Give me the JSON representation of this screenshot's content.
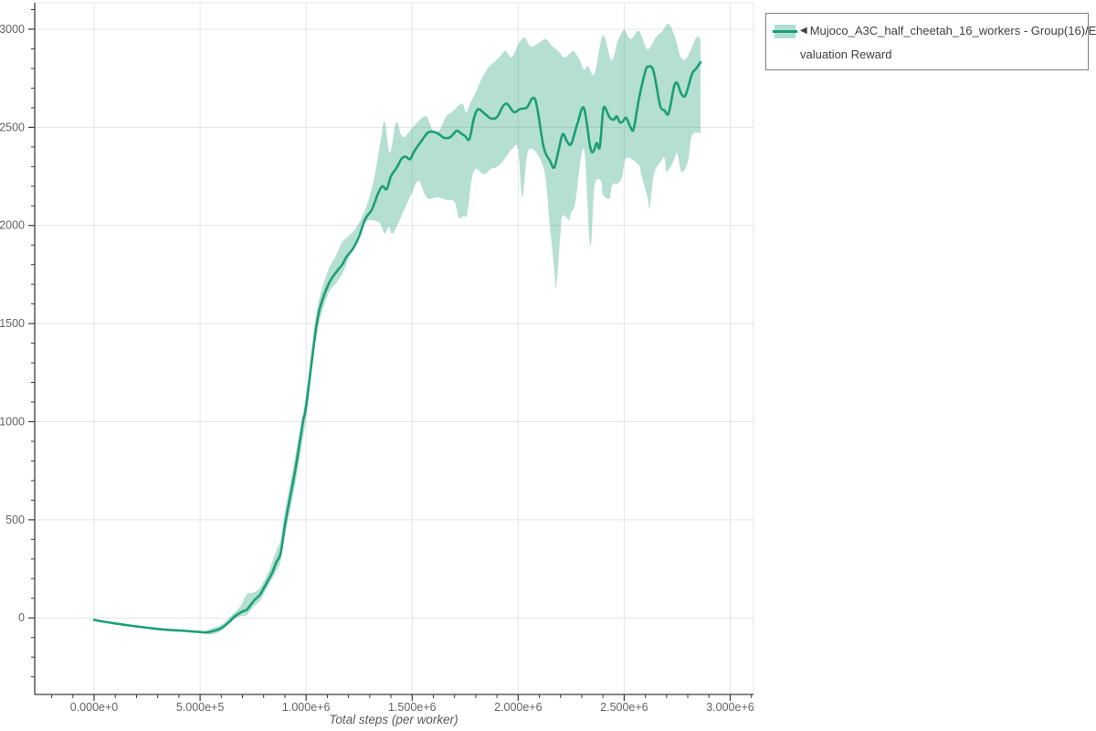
{
  "colors": {
    "series": "#1b9e77",
    "band_opacity": 0.33,
    "grid": "#e4e4e4",
    "axis": "#3c3c3c",
    "tick_label": "#636363",
    "axis_title": "#595959",
    "legend_border": "#7f7f7f",
    "legend_text": "#3f3f3f"
  },
  "legend": {
    "collapse_arrow": "◀",
    "label_line1": "Mujoco_A3C_half_cheetah_16_workers - Group(16)/E",
    "label_line2": "valuation Reward",
    "full_label": "Mujoco_A3C_half_cheetah_16_workers - Group(16)/Evaluation Reward"
  },
  "chart_data": {
    "type": "line",
    "title": "",
    "xlabel": "Total steps (per worker)",
    "ylabel": "",
    "grid": true,
    "legend_position": "top-right",
    "xlim": [
      -280000,
      3110000
    ],
    "ylim": [
      -390,
      3135
    ],
    "x_major_ticks": {
      "values": [
        0,
        500000,
        1000000,
        1500000,
        2000000,
        2500000,
        3000000
      ],
      "labels": [
        "0.000e+0",
        "5.000e+5",
        "1.000e+6",
        "1.500e+6",
        "2.000e+6",
        "2.500e+6",
        "3.000e+6"
      ]
    },
    "y_major_ticks": {
      "values": [
        0,
        500,
        1000,
        1500,
        2000,
        2500,
        3000
      ],
      "labels": [
        "0",
        "500",
        "1000",
        "1500",
        "2000",
        "2500",
        "3000"
      ]
    },
    "x_minor": {
      "start": -200000,
      "end": 3100000,
      "step": 100000
    },
    "y_minor": {
      "start": -300,
      "end": 3100,
      "step": 100
    },
    "series": [
      {
        "name": "Mujoco_A3C_half_cheetah_16_workers - Group(16)/Evaluation Reward",
        "style": "mean_line_with_band",
        "color": "#1b9e77",
        "mean": [
          [
            0,
            -10
          ],
          [
            50000,
            -20
          ],
          [
            100000,
            -28
          ],
          [
            150000,
            -36
          ],
          [
            200000,
            -43
          ],
          [
            250000,
            -50
          ],
          [
            300000,
            -56
          ],
          [
            350000,
            -61
          ],
          [
            400000,
            -64
          ],
          [
            450000,
            -68
          ],
          [
            500000,
            -72
          ],
          [
            530000,
            -74
          ],
          [
            560000,
            -68
          ],
          [
            600000,
            -52
          ],
          [
            640000,
            -18
          ],
          [
            660000,
            5
          ],
          [
            680000,
            20
          ],
          [
            700000,
            33
          ],
          [
            720000,
            42
          ],
          [
            740000,
            68
          ],
          [
            760000,
            95
          ],
          [
            780000,
            115
          ],
          [
            800000,
            150
          ],
          [
            820000,
            190
          ],
          [
            840000,
            230
          ],
          [
            860000,
            285
          ],
          [
            880000,
            330
          ],
          [
            900000,
            470
          ],
          [
            920000,
            590
          ],
          [
            950000,
            760
          ],
          [
            985000,
            1000
          ],
          [
            1000000,
            1080
          ],
          [
            1050000,
            1500
          ],
          [
            1080000,
            1630
          ],
          [
            1110000,
            1710
          ],
          [
            1140000,
            1760
          ],
          [
            1170000,
            1800
          ],
          [
            1190000,
            1840
          ],
          [
            1220000,
            1880
          ],
          [
            1250000,
            1945
          ],
          [
            1280000,
            2035
          ],
          [
            1310000,
            2080
          ],
          [
            1340000,
            2165
          ],
          [
            1360000,
            2200
          ],
          [
            1380000,
            2185
          ],
          [
            1400000,
            2250
          ],
          [
            1430000,
            2300
          ],
          [
            1450000,
            2340
          ],
          [
            1470000,
            2350
          ],
          [
            1490000,
            2338
          ],
          [
            1510000,
            2378
          ],
          [
            1540000,
            2425
          ],
          [
            1570000,
            2468
          ],
          [
            1590000,
            2478
          ],
          [
            1620000,
            2470
          ],
          [
            1650000,
            2447
          ],
          [
            1680000,
            2450
          ],
          [
            1710000,
            2482
          ],
          [
            1730000,
            2470
          ],
          [
            1750000,
            2455
          ],
          [
            1770000,
            2440
          ],
          [
            1790000,
            2540
          ],
          [
            1810000,
            2592
          ],
          [
            1840000,
            2572
          ],
          [
            1870000,
            2546
          ],
          [
            1900000,
            2552
          ],
          [
            1930000,
            2610
          ],
          [
            1950000,
            2618
          ],
          [
            1980000,
            2578
          ],
          [
            2010000,
            2594
          ],
          [
            2040000,
            2600
          ],
          [
            2080000,
            2642
          ],
          [
            2120000,
            2400
          ],
          [
            2150000,
            2330
          ],
          [
            2170000,
            2295
          ],
          [
            2190000,
            2380
          ],
          [
            2210000,
            2465
          ],
          [
            2230000,
            2430
          ],
          [
            2250000,
            2415
          ],
          [
            2280000,
            2520
          ],
          [
            2310000,
            2598
          ],
          [
            2340000,
            2400
          ],
          [
            2355000,
            2377
          ],
          [
            2370000,
            2420
          ],
          [
            2385000,
            2400
          ],
          [
            2400000,
            2580
          ],
          [
            2410000,
            2600
          ],
          [
            2430000,
            2553
          ],
          [
            2450000,
            2539
          ],
          [
            2465000,
            2556
          ],
          [
            2480000,
            2525
          ],
          [
            2495000,
            2532
          ],
          [
            2510000,
            2548
          ],
          [
            2530000,
            2500
          ],
          [
            2545000,
            2493
          ],
          [
            2570000,
            2646
          ],
          [
            2600000,
            2786
          ],
          [
            2615000,
            2810
          ],
          [
            2635000,
            2798
          ],
          [
            2650000,
            2725
          ],
          [
            2670000,
            2609
          ],
          [
            2690000,
            2586
          ],
          [
            2710000,
            2572
          ],
          [
            2735000,
            2705
          ],
          [
            2750000,
            2725
          ],
          [
            2770000,
            2670
          ],
          [
            2790000,
            2665
          ],
          [
            2820000,
            2772
          ],
          [
            2840000,
            2800
          ],
          [
            2860000,
            2832
          ]
        ],
        "band_upper": [
          [
            520000,
            -72
          ],
          [
            550000,
            -55
          ],
          [
            600000,
            -35
          ],
          [
            650000,
            15
          ],
          [
            690000,
            60
          ],
          [
            720000,
            120
          ],
          [
            750000,
            128
          ],
          [
            780000,
            150
          ],
          [
            800000,
            185
          ],
          [
            830000,
            255
          ],
          [
            860000,
            345
          ],
          [
            880000,
            400
          ],
          [
            900000,
            540
          ],
          [
            950000,
            830
          ],
          [
            1000000,
            1140
          ],
          [
            1050000,
            1560
          ],
          [
            1100000,
            1760
          ],
          [
            1140000,
            1845
          ],
          [
            1170000,
            1915
          ],
          [
            1200000,
            1945
          ],
          [
            1230000,
            1980
          ],
          [
            1260000,
            2035
          ],
          [
            1290000,
            2115
          ],
          [
            1320000,
            2235
          ],
          [
            1350000,
            2420
          ],
          [
            1370000,
            2530
          ],
          [
            1395000,
            2370
          ],
          [
            1425000,
            2525
          ],
          [
            1455000,
            2450
          ],
          [
            1500000,
            2495
          ],
          [
            1540000,
            2542
          ],
          [
            1570000,
            2552
          ],
          [
            1600000,
            2480
          ],
          [
            1630000,
            2487
          ],
          [
            1660000,
            2556
          ],
          [
            1690000,
            2580
          ],
          [
            1720000,
            2612
          ],
          [
            1740000,
            2618
          ],
          [
            1755000,
            2575
          ],
          [
            1775000,
            2627
          ],
          [
            1800000,
            2680
          ],
          [
            1830000,
            2752
          ],
          [
            1860000,
            2805
          ],
          [
            1890000,
            2835
          ],
          [
            1920000,
            2868
          ],
          [
            1940000,
            2890
          ],
          [
            1970000,
            2858
          ],
          [
            2000000,
            2922
          ],
          [
            2030000,
            2958
          ],
          [
            2060000,
            2912
          ],
          [
            2100000,
            2932
          ],
          [
            2130000,
            2950
          ],
          [
            2160000,
            2915
          ],
          [
            2190000,
            2888
          ],
          [
            2220000,
            2855
          ],
          [
            2260000,
            2888
          ],
          [
            2290000,
            2842
          ],
          [
            2310000,
            2795
          ],
          [
            2330000,
            2812
          ],
          [
            2360000,
            2772
          ],
          [
            2400000,
            2968
          ],
          [
            2440000,
            2842
          ],
          [
            2470000,
            2940
          ],
          [
            2500000,
            2996
          ],
          [
            2530000,
            2950
          ],
          [
            2570000,
            2991
          ],
          [
            2610000,
            2898
          ],
          [
            2650000,
            2960
          ],
          [
            2680000,
            2990
          ],
          [
            2710000,
            3028
          ],
          [
            2740000,
            2958
          ],
          [
            2770000,
            2851
          ],
          [
            2800000,
            2862
          ],
          [
            2840000,
            2958
          ],
          [
            2860000,
            2950
          ]
        ],
        "band_lower": [
          [
            520000,
            -74
          ],
          [
            550000,
            -85
          ],
          [
            600000,
            -65
          ],
          [
            650000,
            -15
          ],
          [
            690000,
            8
          ],
          [
            720000,
            15
          ],
          [
            750000,
            55
          ],
          [
            780000,
            85
          ],
          [
            800000,
            120
          ],
          [
            830000,
            180
          ],
          [
            860000,
            240
          ],
          [
            880000,
            290
          ],
          [
            900000,
            420
          ],
          [
            950000,
            690
          ],
          [
            1000000,
            1020
          ],
          [
            1050000,
            1440
          ],
          [
            1100000,
            1640
          ],
          [
            1140000,
            1705
          ],
          [
            1170000,
            1752
          ],
          [
            1200000,
            1830
          ],
          [
            1230000,
            1912
          ],
          [
            1260000,
            1985
          ],
          [
            1290000,
            2025
          ],
          [
            1320000,
            2025
          ],
          [
            1350000,
            2010
          ],
          [
            1370000,
            1958
          ],
          [
            1390000,
            1995
          ],
          [
            1410000,
            1960
          ],
          [
            1460000,
            2074
          ],
          [
            1480000,
            2122
          ],
          [
            1500000,
            2167
          ],
          [
            1530000,
            2228
          ],
          [
            1560000,
            2158
          ],
          [
            1580000,
            2135
          ],
          [
            1620000,
            2144
          ],
          [
            1660000,
            2130
          ],
          [
            1700000,
            2120
          ],
          [
            1720000,
            2040
          ],
          [
            1740000,
            2048
          ],
          [
            1760000,
            2060
          ],
          [
            1780000,
            2228
          ],
          [
            1800000,
            2288
          ],
          [
            1840000,
            2260
          ],
          [
            1870000,
            2288
          ],
          [
            1900000,
            2298
          ],
          [
            1930000,
            2330
          ],
          [
            1970000,
            2388
          ],
          [
            2000000,
            2390
          ],
          [
            2020000,
            2144
          ],
          [
            2050000,
            2386
          ],
          [
            2120000,
            2293
          ],
          [
            2150000,
            1995
          ],
          [
            2170000,
            1781
          ],
          [
            2180000,
            1688
          ],
          [
            2200000,
            1967
          ],
          [
            2210000,
            2051
          ],
          [
            2240000,
            2028
          ],
          [
            2250000,
            2065
          ],
          [
            2270000,
            2121
          ],
          [
            2310000,
            2391
          ],
          [
            2340000,
            1898
          ],
          [
            2360000,
            2200
          ],
          [
            2390000,
            2228
          ],
          [
            2400000,
            2158
          ],
          [
            2430000,
            2135
          ],
          [
            2440000,
            2191
          ],
          [
            2450000,
            2214
          ],
          [
            2470000,
            2214
          ],
          [
            2490000,
            2246
          ],
          [
            2510000,
            2344
          ],
          [
            2570000,
            2307
          ],
          [
            2580000,
            2260
          ],
          [
            2610000,
            2144
          ],
          [
            2620000,
            2088
          ],
          [
            2640000,
            2260
          ],
          [
            2670000,
            2321
          ],
          [
            2690000,
            2344
          ],
          [
            2700000,
            2274
          ],
          [
            2730000,
            2321
          ],
          [
            2750000,
            2367
          ],
          [
            2770000,
            2274
          ],
          [
            2800000,
            2321
          ],
          [
            2820000,
            2460
          ],
          [
            2860000,
            2470
          ]
        ]
      }
    ]
  }
}
